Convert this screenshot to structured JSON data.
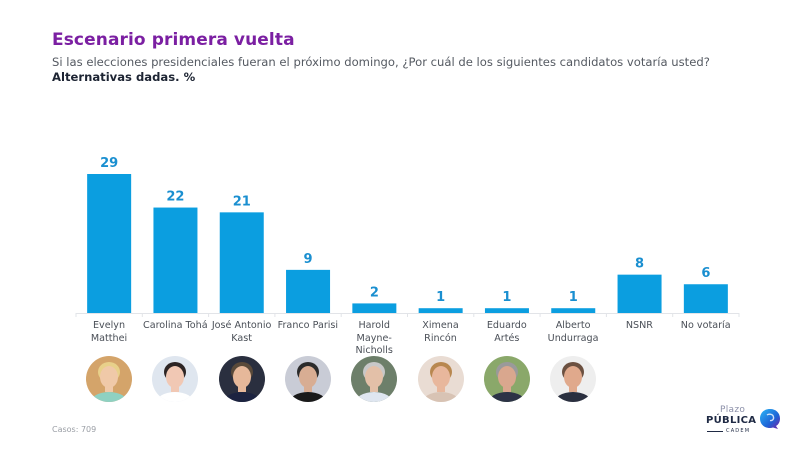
{
  "header": {
    "title": "Escenario primera vuelta",
    "question": "Si las elecciones presidenciales fueran el próximo domingo, ¿Por cuál de los siguientes candidatos votaría usted?",
    "subtitle": "Alternativas dadas. %"
  },
  "chart_data": {
    "type": "bar",
    "title": "Escenario primera vuelta",
    "subtitle": "Alternativas dadas. %",
    "xlabel": "",
    "ylabel": "%",
    "ylim": [
      0,
      30
    ],
    "grid": false,
    "legend": "none",
    "categories": [
      "Evelyn Matthei",
      "Carolina Tohá",
      "José Antonio Kast",
      "Franco Parisi",
      "Harold Mayne-Nicholls",
      "Ximena Rincón",
      "Eduardo Artés",
      "Alberto Undurraga",
      "NSNR",
      "No votaría"
    ],
    "category_labels": [
      [
        "Evelyn",
        "Matthei"
      ],
      [
        "Carolina Tohá"
      ],
      [
        "José Antonio",
        "Kast"
      ],
      [
        "Franco Parisi"
      ],
      [
        "Harold",
        "Mayne-",
        "Nicholls"
      ],
      [
        "Ximena",
        "Rincón"
      ],
      [
        "Eduardo",
        "Artés"
      ],
      [
        "Alberto",
        "Undurraga"
      ],
      [
        "NSNR"
      ],
      [
        "No votaría"
      ]
    ],
    "values": [
      29,
      22,
      21,
      9,
      2,
      1,
      1,
      1,
      8,
      6
    ],
    "bar_color": "#0b9ee0",
    "label_color": "#1a8fd0"
  },
  "photos": [
    {
      "name": "Evelyn Matthei",
      "palette": [
        "#d4a46a",
        "#f0c9a8",
        "#e8d08a",
        "#8fd1c2"
      ]
    },
    {
      "name": "Carolina Tohá",
      "palette": [
        "#dfe6ef",
        "#f1c8b4",
        "#2c2424",
        "#ffffff"
      ]
    },
    {
      "name": "José Antonio Kast",
      "palette": [
        "#2a2f3f",
        "#e6b89a",
        "#5a4a3a",
        "#1c2340"
      ]
    },
    {
      "name": "Franco Parisi",
      "palette": [
        "#c9ccd6",
        "#d8ad93",
        "#2b2b2b",
        "#1a1a1a"
      ]
    },
    {
      "name": "Harold Mayne-Nicholls",
      "palette": [
        "#6d7f6a",
        "#e3c0a8",
        "#c8c8c8",
        "#dfe6f0"
      ]
    },
    {
      "name": "Ximena Rincón",
      "palette": [
        "#e9dcd3",
        "#e8b79c",
        "#b8874f",
        "#d8c3b4"
      ]
    },
    {
      "name": "Eduardo Artés",
      "palette": [
        "#8aa86a",
        "#d9a78e",
        "#9a9a9a",
        "#2c3346"
      ]
    },
    {
      "name": "Alberto Undurraga",
      "palette": [
        "#eeeeee",
        "#e0a98c",
        "#6b5040",
        "#2a2f3f"
      ]
    }
  ],
  "footer": {
    "cases_label": "Casos: 709"
  },
  "logo": {
    "line1": "Plazo",
    "line2": "PÚBLICA",
    "line3": "CADEM"
  },
  "colors": {
    "title": "#7b1fa2",
    "bar": "#0b9ee0",
    "logo_blue": "#1e88e5",
    "logo_purple": "#7b1fa2"
  }
}
